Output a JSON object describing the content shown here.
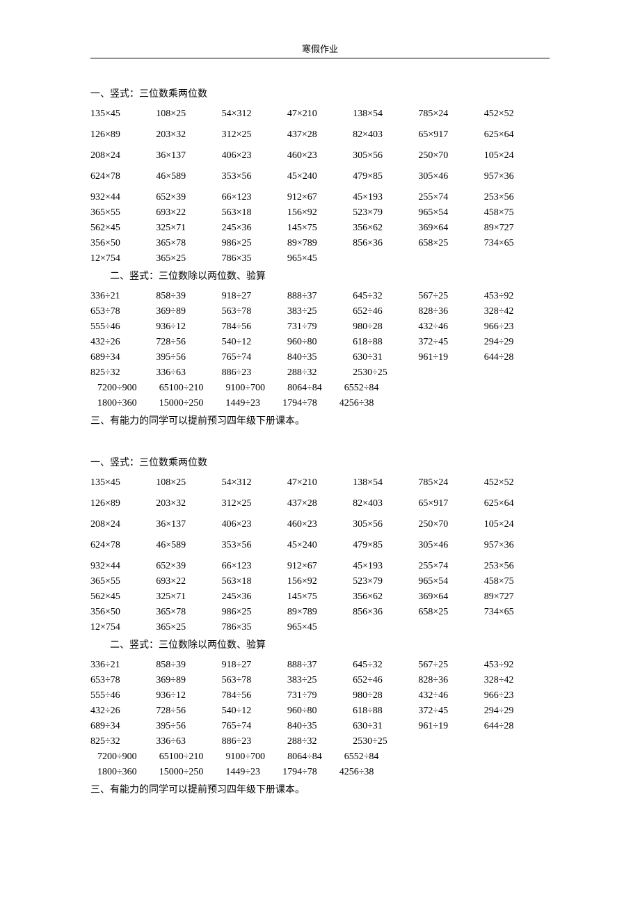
{
  "header": "寒假作业",
  "section1_title": "一、竖式：三位数乘两位数",
  "section2_title": "二、竖式：三位数除以两位数、验算",
  "note": "三、有能力的同学可以提前预习四年级下册课本。",
  "mult_sparse": [
    [
      "135×45",
      "108×25",
      "54×312",
      "47×210",
      "138×54",
      "785×24",
      "452×52"
    ],
    [
      "126×89",
      "203×32",
      "312×25",
      "437×28",
      "82×403",
      "65×917",
      "625×64"
    ],
    [
      "208×24",
      "36×137",
      "406×23",
      "460×23",
      "305×56",
      "250×70",
      "105×24"
    ],
    [
      "624×78",
      "46×589",
      "353×56",
      "45×240",
      "479×85",
      "305×46",
      "957×36"
    ]
  ],
  "mult_dense": [
    [
      "932×44",
      "652×39",
      "66×123",
      "912×67",
      "45×193",
      "255×74",
      "253×56"
    ],
    [
      "365×55",
      "693×22",
      "563×18",
      "156×92",
      "523×79",
      "965×54",
      "458×75"
    ],
    [
      "562×45",
      "325×71",
      "245×36",
      "145×75",
      "356×62",
      "369×64",
      "89×727"
    ],
    [
      "356×50",
      "365×78",
      "986×25",
      "89×789",
      "856×36",
      "658×25",
      "734×65"
    ],
    [
      "12×754",
      "365×25",
      "786×35",
      "965×45",
      "",
      "",
      ""
    ]
  ],
  "div_rows": [
    [
      "336÷21",
      "858÷39",
      "918÷27",
      "888÷37",
      "645÷32",
      "567÷25",
      "453÷92"
    ],
    [
      "653÷78",
      "369÷89",
      "563÷78",
      "383÷25",
      "652÷46",
      "828÷36",
      "328÷42"
    ],
    [
      "555÷46",
      "936÷12",
      "784÷56",
      "731÷79",
      "980÷28",
      "432÷46",
      "966÷23"
    ],
    [
      "432÷26",
      "728÷56",
      "540÷12",
      "960÷80",
      "618÷88",
      "372÷45",
      "294÷29"
    ],
    [
      "689÷34",
      "395÷56",
      "765÷74",
      "840÷35",
      "630÷31",
      "961÷19",
      "644÷28"
    ],
    [
      "825÷32",
      "336÷63",
      "886÷23",
      "288÷32",
      "2530÷25",
      "",
      ""
    ]
  ],
  "div_wide": [
    [
      "7200÷900",
      "65100÷210",
      "9100÷700",
      "8064÷84",
      "6552÷84"
    ],
    [
      "1800÷360",
      "15000÷250",
      "1449÷23",
      "1794÷78",
      "4256÷38"
    ]
  ]
}
